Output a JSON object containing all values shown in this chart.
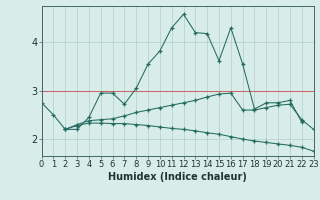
{
  "xlabel": "Humidex (Indice chaleur)",
  "x": [
    0,
    1,
    2,
    3,
    4,
    5,
    6,
    7,
    8,
    9,
    10,
    11,
    12,
    13,
    14,
    15,
    16,
    17,
    18,
    19,
    20,
    21,
    22,
    23
  ],
  "line1": [
    2.75,
    2.5,
    2.2,
    2.2,
    2.45,
    2.95,
    2.95,
    2.72,
    3.05,
    3.55,
    3.82,
    4.3,
    4.58,
    4.2,
    4.18,
    3.62,
    4.3,
    3.55,
    2.62,
    2.75,
    2.75,
    2.8,
    2.35,
    null
  ],
  "line2": [
    null,
    null,
    2.2,
    2.3,
    2.38,
    2.4,
    2.42,
    2.48,
    2.55,
    2.6,
    2.65,
    2.7,
    2.75,
    2.8,
    2.87,
    2.93,
    2.95,
    2.6,
    2.6,
    2.65,
    2.7,
    2.72,
    2.4,
    2.2
  ],
  "line3": [
    null,
    null,
    2.2,
    2.28,
    2.33,
    2.33,
    2.32,
    2.32,
    2.3,
    2.28,
    2.25,
    2.22,
    2.2,
    2.17,
    2.13,
    2.1,
    2.05,
    2.0,
    1.96,
    1.93,
    1.9,
    1.87,
    1.83,
    1.75
  ],
  "line_color": "#236b5e",
  "bg_color": "#d8ecea",
  "grid_color": "#b8d4d0",
  "red_line_color": "#cc6666",
  "ylim": [
    1.65,
    4.75
  ],
  "xlim": [
    0,
    23
  ],
  "yticks": [
    2,
    3,
    4
  ],
  "xticks": [
    0,
    1,
    2,
    3,
    4,
    5,
    6,
    7,
    8,
    9,
    10,
    11,
    12,
    13,
    14,
    15,
    16,
    17,
    18,
    19,
    20,
    21,
    22,
    23
  ],
  "red_hline_y": 3.0,
  "tick_fontsize": 6,
  "xlabel_fontsize": 7
}
